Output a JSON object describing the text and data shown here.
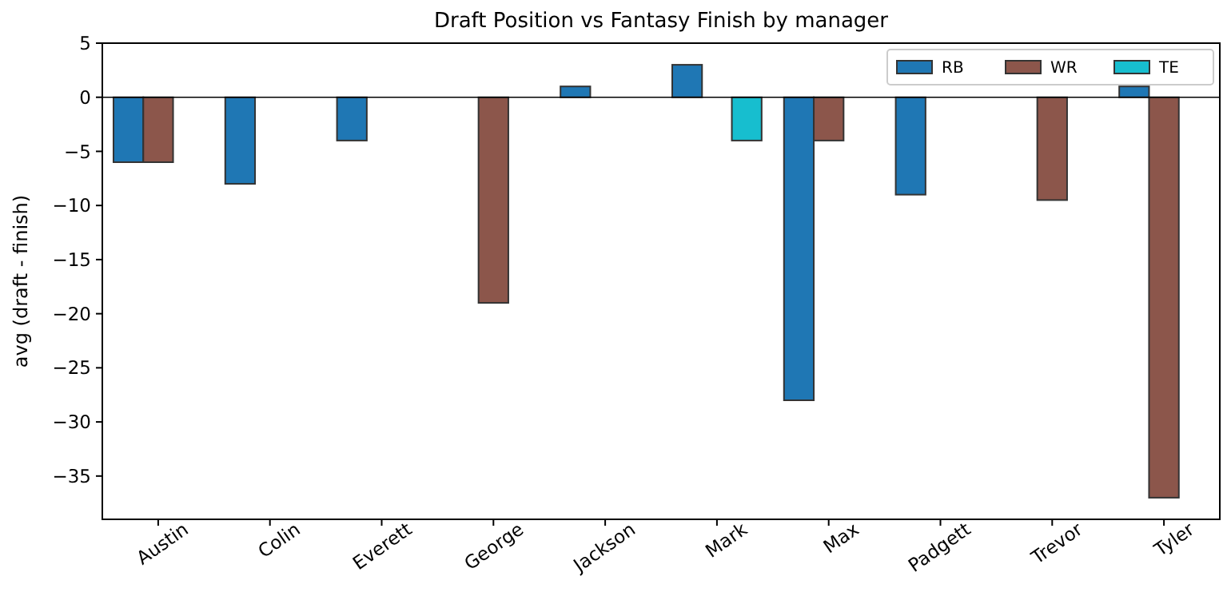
{
  "chart_data": {
    "type": "bar",
    "title": "Draft Position vs Fantasy Finish by manager",
    "ylabel": "avg (draft - finish)",
    "categories": [
      "Austin",
      "Colin",
      "Everett",
      "George",
      "Jackson",
      "Mark",
      "Max",
      "Padgett",
      "Trevor",
      "Tyler"
    ],
    "series": [
      {
        "name": "RB",
        "color": "#1f77b4",
        "values": [
          -6,
          -8,
          -4,
          0,
          1,
          3,
          -28,
          -9,
          0,
          1
        ]
      },
      {
        "name": "WR",
        "color": "#8c564b",
        "values": [
          -6,
          0,
          0,
          -19,
          0,
          0,
          -4,
          0,
          -9.5,
          -37
        ]
      },
      {
        "name": "TE",
        "color": "#17becf",
        "values": [
          0,
          0,
          0,
          0,
          0,
          -4,
          0,
          0,
          0,
          0
        ]
      }
    ],
    "ylim": [
      -39,
      5
    ],
    "yticks": [
      {
        "value": 5,
        "label": "5"
      },
      {
        "value": 0,
        "label": "0"
      },
      {
        "value": -5,
        "label": "−5"
      },
      {
        "value": -10,
        "label": "−10"
      },
      {
        "value": -15,
        "label": "−15"
      },
      {
        "value": -20,
        "label": "−20"
      },
      {
        "value": -25,
        "label": "−25"
      },
      {
        "value": -30,
        "label": "−30"
      },
      {
        "value": -35,
        "label": "−35"
      }
    ],
    "ref_lines": [
      {
        "axis": "y",
        "value": 0,
        "color": "#000000"
      }
    ],
    "legend": "top right"
  }
}
